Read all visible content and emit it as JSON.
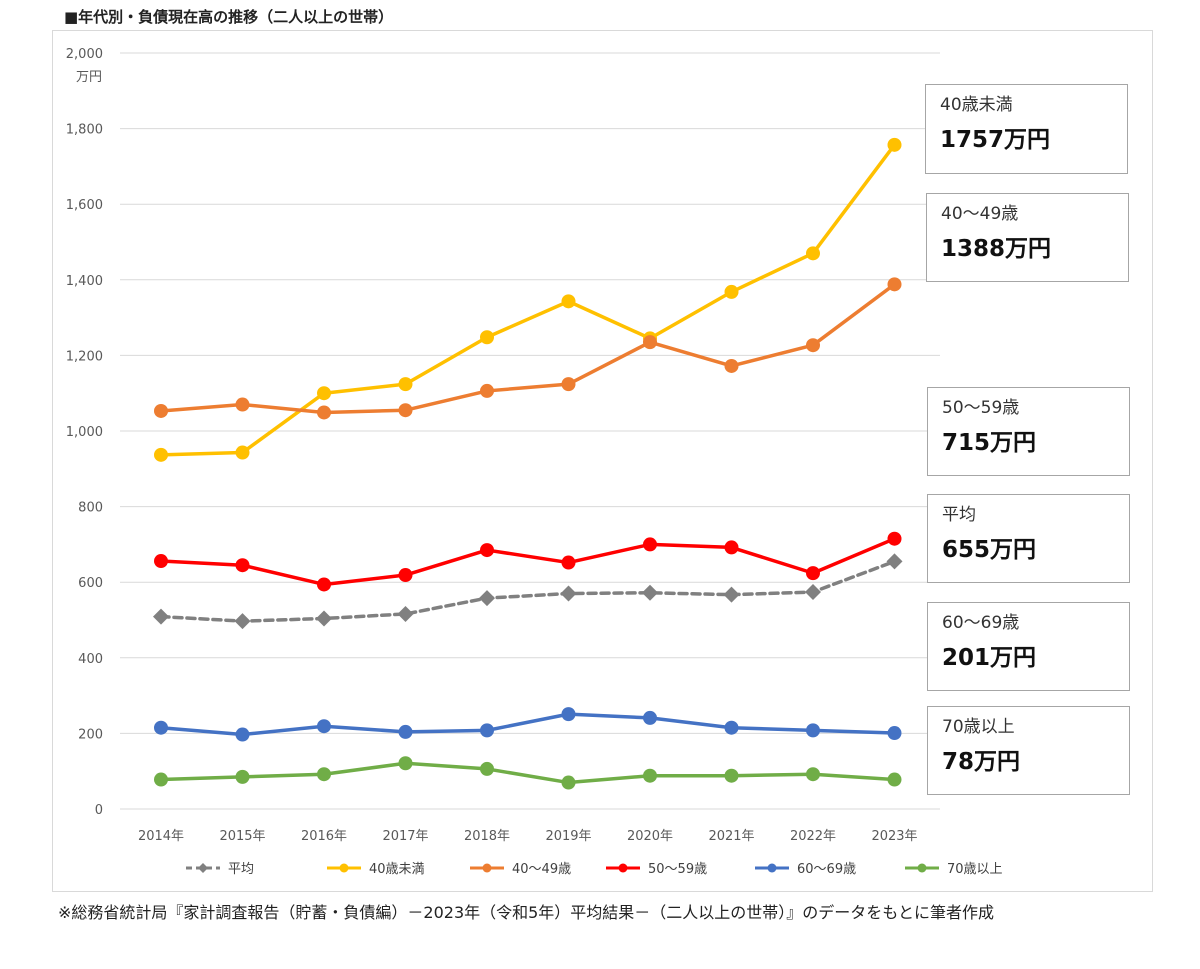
{
  "title": "■年代別・負債現在高の推移（二人以上の世帯）",
  "source": "※総務省統計局『家計調査報告（貯蓄・負債編）－2023年（令和5年）平均結果－（二人以上の世帯）』のデータをもとに筆者作成",
  "chart_data": {
    "type": "line",
    "y_unit": "万円",
    "ylim": [
      0,
      2000
    ],
    "yticks": [
      "2,000",
      "1,800",
      "1,600",
      "1,400",
      "1,200",
      "1,000",
      "800",
      "600",
      "400",
      "200",
      "0"
    ],
    "ytick_values": [
      2000,
      1800,
      1600,
      1400,
      1200,
      1000,
      800,
      600,
      400,
      200,
      0
    ],
    "grid": true,
    "legend_position": "bottom",
    "categories": [
      "2014年",
      "2015年",
      "2016年",
      "2017年",
      "2018年",
      "2019年",
      "2020年",
      "2021年",
      "2022年",
      "2023年"
    ],
    "series": [
      {
        "name": "平均",
        "color": "#808080",
        "marker": "diamond",
        "dashed": true,
        "values": [
          509,
          497,
          504,
          516,
          558,
          570,
          572,
          567,
          574,
          655
        ]
      },
      {
        "name": "40歳未満",
        "color": "#ffc000",
        "marker": "circle",
        "dashed": false,
        "values": [
          937,
          943,
          1100,
          1124,
          1248,
          1343,
          1245,
          1368,
          1470,
          1757
        ]
      },
      {
        "name": "40～49歳",
        "color": "#ed7d31",
        "marker": "circle",
        "dashed": false,
        "values": [
          1053,
          1070,
          1049,
          1055,
          1106,
          1124,
          1235,
          1172,
          1227,
          1388
        ]
      },
      {
        "name": "50～59歳",
        "color": "#ff0000",
        "marker": "circle",
        "dashed": false,
        "values": [
          656,
          645,
          594,
          619,
          685,
          652,
          700,
          692,
          624,
          715
        ]
      },
      {
        "name": "60～69歳",
        "color": "#4472c4",
        "marker": "circle",
        "dashed": false,
        "values": [
          215,
          197,
          219,
          204,
          208,
          251,
          241,
          215,
          208,
          201
        ]
      },
      {
        "name": "70歳以上",
        "color": "#70ad47",
        "marker": "circle",
        "dashed": false,
        "values": [
          78,
          85,
          92,
          121,
          106,
          70,
          88,
          88,
          92,
          78
        ]
      }
    ],
    "legend": [
      "平均",
      "40歳未満",
      "40～49歳",
      "50～59歳",
      "60～69歳",
      "70歳以上"
    ],
    "callouts": [
      {
        "label": "40歳未満",
        "value": "1757万円"
      },
      {
        "label": "40～49歳",
        "value": "1388万円"
      },
      {
        "label": "50～59歳",
        "value": "715万円"
      },
      {
        "label": "平均",
        "value": "655万円"
      },
      {
        "label": "60～69歳",
        "value": "201万円"
      },
      {
        "label": "70歳以上",
        "value": "78万円"
      }
    ]
  }
}
